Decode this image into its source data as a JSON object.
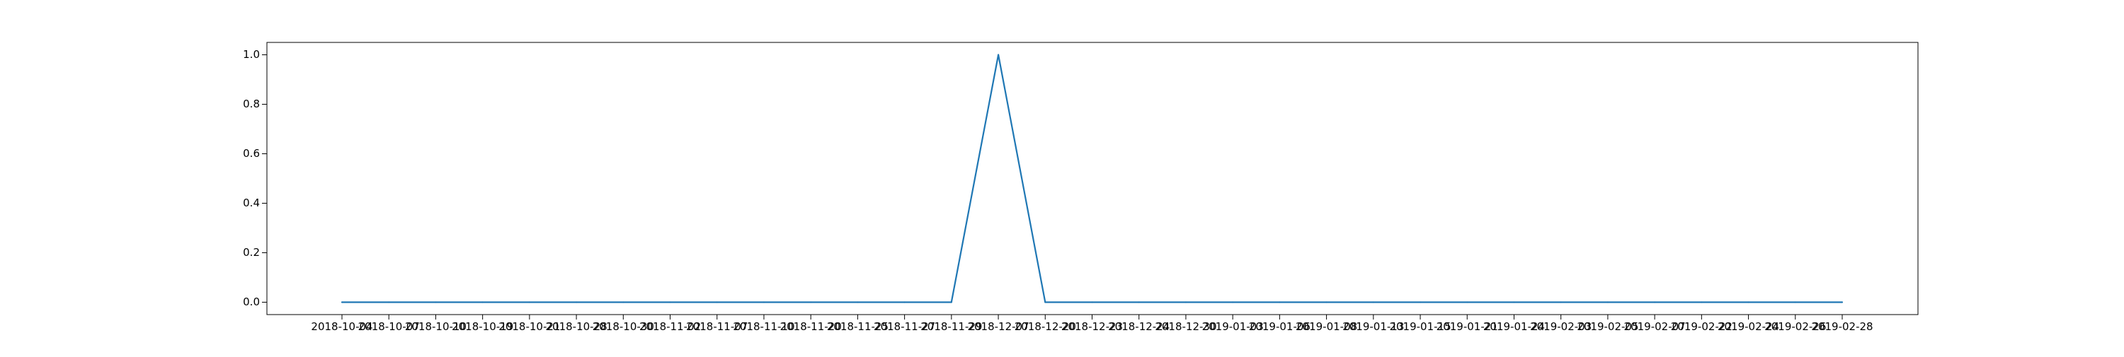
{
  "chart_data": {
    "type": "line",
    "title": "",
    "xlabel": "",
    "ylabel": "",
    "ylim": [
      -0.05,
      1.05
    ],
    "grid": false,
    "y_ticks": [
      0.0,
      0.2,
      0.4,
      0.6,
      0.8,
      1.0
    ],
    "y_tick_labels": [
      "0.0",
      "0.2",
      "0.4",
      "0.6",
      "0.8",
      "1.0"
    ],
    "x": [
      "2018-10-04",
      "2018-10-07",
      "2018-10-10",
      "2018-10-19",
      "2018-10-21",
      "2018-10-28",
      "2018-10-30",
      "2018-11-02",
      "2018-11-07",
      "2018-11-10",
      "2018-11-20",
      "2018-11-25",
      "2018-11-27",
      "2018-11-29",
      "2018-12-07",
      "2018-12-20",
      "2018-12-23",
      "2018-12-24",
      "2018-12-30",
      "2019-01-03",
      "2019-01-06",
      "2019-01-08",
      "2019-01-13",
      "2019-01-15",
      "2019-01-21",
      "2019-01-24",
      "2019-02-03",
      "2019-02-05",
      "2019-02-07",
      "2019-02-22",
      "2019-02-24",
      "2019-02-26",
      "2019-02-28"
    ],
    "series": [
      {
        "color": "#1f77b4",
        "values": [
          0,
          0,
          0,
          0,
          0,
          0,
          0,
          0,
          0,
          0,
          0,
          0,
          0,
          0,
          1,
          0,
          0,
          0,
          0,
          0,
          0,
          0,
          0,
          0,
          0,
          0,
          0,
          0,
          0,
          0,
          0,
          0,
          0
        ]
      }
    ]
  }
}
